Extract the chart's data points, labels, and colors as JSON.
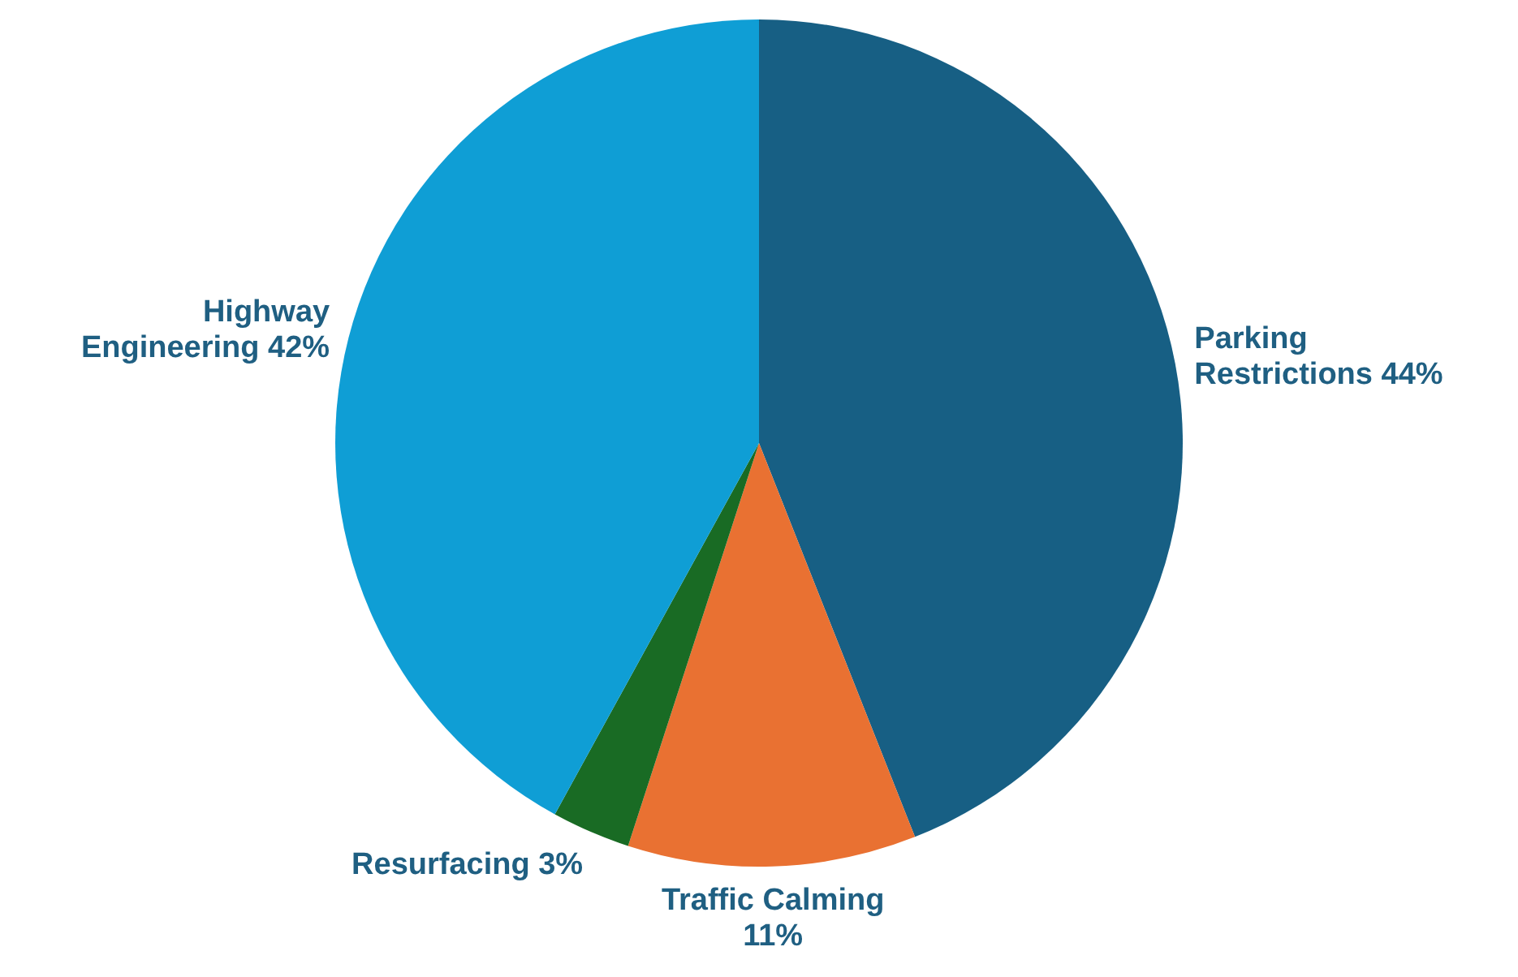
{
  "chart_data": {
    "type": "pie",
    "categories": [
      "Parking Restrictions",
      "Traffic Calming",
      "Resurfacing",
      "Highway Engineering"
    ],
    "values": [
      44,
      11,
      3,
      42
    ],
    "value_labels": [
      "44%",
      "11%",
      "3%",
      "42%"
    ],
    "colors": [
      "#175f84",
      "#e97132",
      "#196b24",
      "#0f9ed5"
    ],
    "legend": false
  }
}
